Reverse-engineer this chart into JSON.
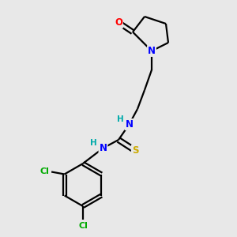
{
  "background_color": "#e8e8e8",
  "atoms": {
    "O": {
      "color": "#ff0000"
    },
    "N": {
      "color": "#0000ff"
    },
    "S": {
      "color": "#ccaa00"
    },
    "Cl": {
      "color": "#00aa00"
    },
    "H": {
      "color": "#00aaaa"
    }
  },
  "bond_color": "#000000",
  "bond_lw": 1.6,
  "font_size_atom": 8.5,
  "font_size_h": 7.5
}
